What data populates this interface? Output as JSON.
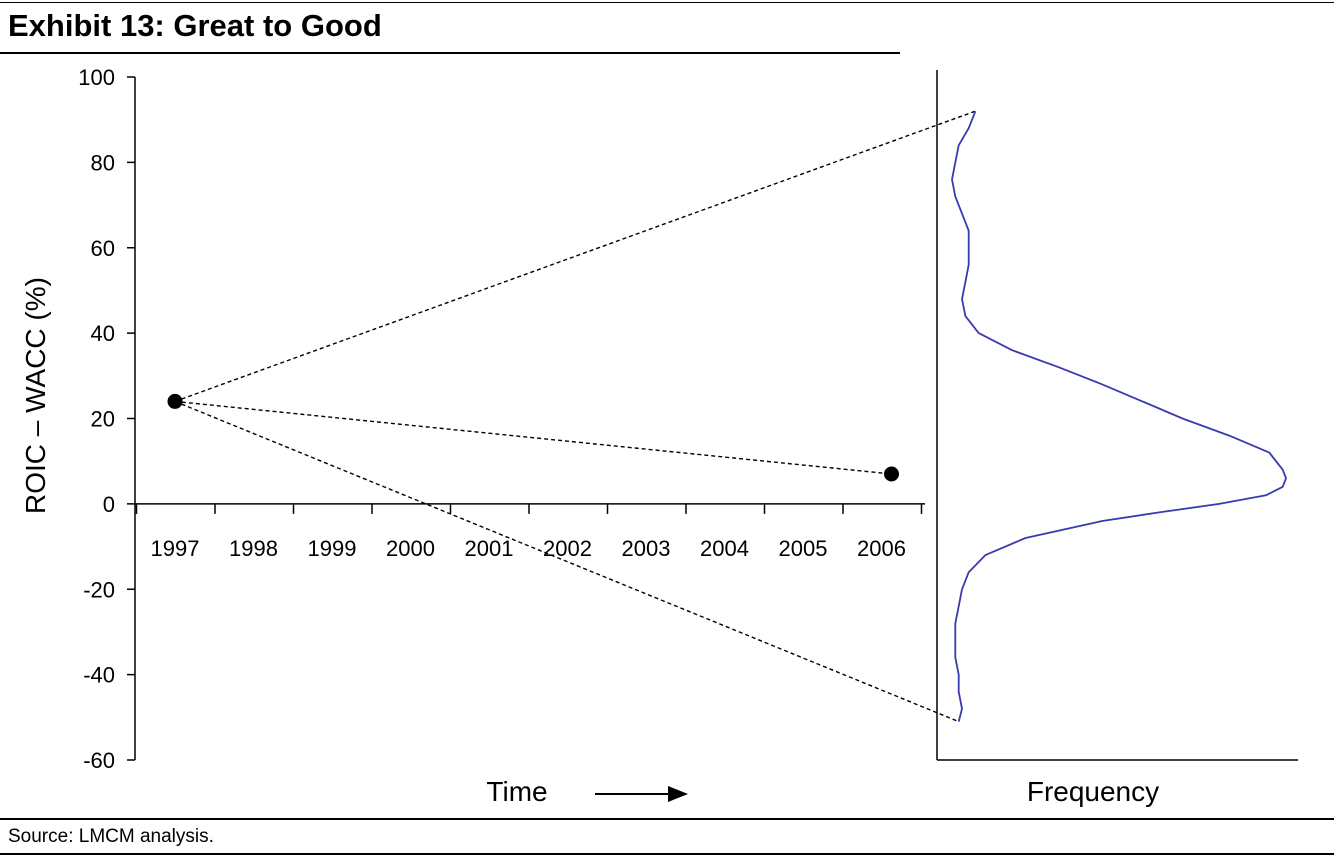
{
  "title": "Exhibit 13: Great to Good",
  "source": "Source: LMCM analysis.",
  "colors": {
    "density": "#3a3ab0",
    "axes": "#000000",
    "guides": "#000000"
  },
  "chart_data": [
    {
      "type": "scatter",
      "title": "",
      "xlabel": "Time",
      "ylabel": "ROIC – WACC (%)",
      "ylim": [
        -60,
        100
      ],
      "y_ticks": [
        100,
        80,
        60,
        40,
        20,
        0,
        -20,
        -40,
        -60
      ],
      "categories": [
        "1997",
        "1998",
        "1999",
        "2000",
        "2001",
        "2002",
        "2003",
        "2004",
        "2005",
        "2006"
      ],
      "points": [
        {
          "x": "1997",
          "y": 24
        },
        {
          "x": "2006",
          "y": 7
        }
      ],
      "guide_lines": [
        {
          "from": {
            "x": "1997",
            "y": 24
          },
          "to": {
            "x": "2006",
            "y": 7
          },
          "style": "dashed"
        },
        {
          "from": {
            "x": "1997",
            "y": 24
          },
          "to_distribution_y": 92,
          "style": "dashed"
        },
        {
          "from": {
            "x": "1997",
            "y": 24
          },
          "to_distribution_y": -51,
          "style": "dashed"
        }
      ],
      "grid": false,
      "legend": "none"
    },
    {
      "type": "line",
      "title": "",
      "xlabel": "Frequency",
      "ylim": [
        -60,
        100
      ],
      "orientation": "vertical-distribution",
      "series": [
        {
          "y": [
            92,
            88,
            84,
            80,
            76,
            72,
            68,
            64,
            60,
            56,
            52,
            48,
            44,
            40,
            36,
            32,
            28,
            24,
            20,
            16,
            12,
            8,
            6,
            4,
            2,
            0,
            -2,
            -4,
            -8,
            -12,
            -16,
            -20,
            -24,
            -28,
            -32,
            -36,
            -40,
            -44,
            -48,
            -51
          ],
          "frequency": [
            0.07,
            0.05,
            0.02,
            0.01,
            0.0,
            0.01,
            0.03,
            0.05,
            0.05,
            0.05,
            0.04,
            0.03,
            0.04,
            0.08,
            0.18,
            0.32,
            0.45,
            0.57,
            0.69,
            0.83,
            0.95,
            0.99,
            1.0,
            0.99,
            0.94,
            0.8,
            0.62,
            0.45,
            0.22,
            0.1,
            0.05,
            0.03,
            0.02,
            0.01,
            0.01,
            0.01,
            0.02,
            0.02,
            0.03,
            0.02
          ]
        }
      ]
    }
  ]
}
